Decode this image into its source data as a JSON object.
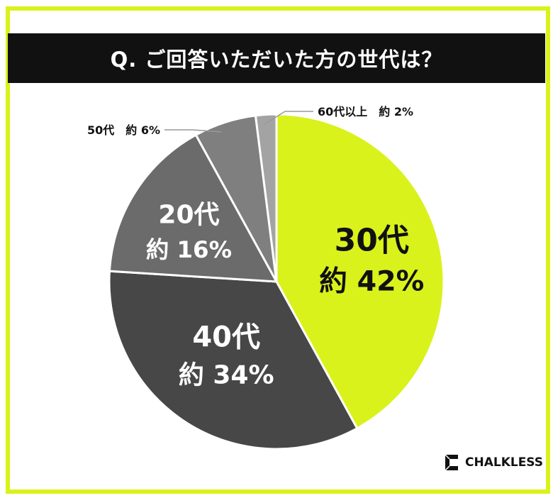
{
  "title": "Q. ご回答いただいた方の世代は？",
  "brand": "CHALKLESS",
  "chart_data": {
    "type": "pie",
    "slices": [
      {
        "label": "30代",
        "value_label": "約 42%",
        "value": 42,
        "color": "#d9f21c",
        "text_color": "#111111"
      },
      {
        "label": "40代",
        "value_label": "約 34%",
        "value": 34,
        "color": "#474747",
        "text_color": "#ffffff"
      },
      {
        "label": "20代",
        "value_label": "約 16%",
        "value": 16,
        "color": "#6b6b6b",
        "text_color": "#ffffff"
      },
      {
        "label": "50代",
        "value_label": "約 6%",
        "value": 6,
        "color": "#7f7f7f",
        "text_color": "#111111"
      },
      {
        "label": "60代以上",
        "value_label": "約 2%",
        "value": 2,
        "color": "#a3a3a3",
        "text_color": "#111111"
      }
    ]
  }
}
